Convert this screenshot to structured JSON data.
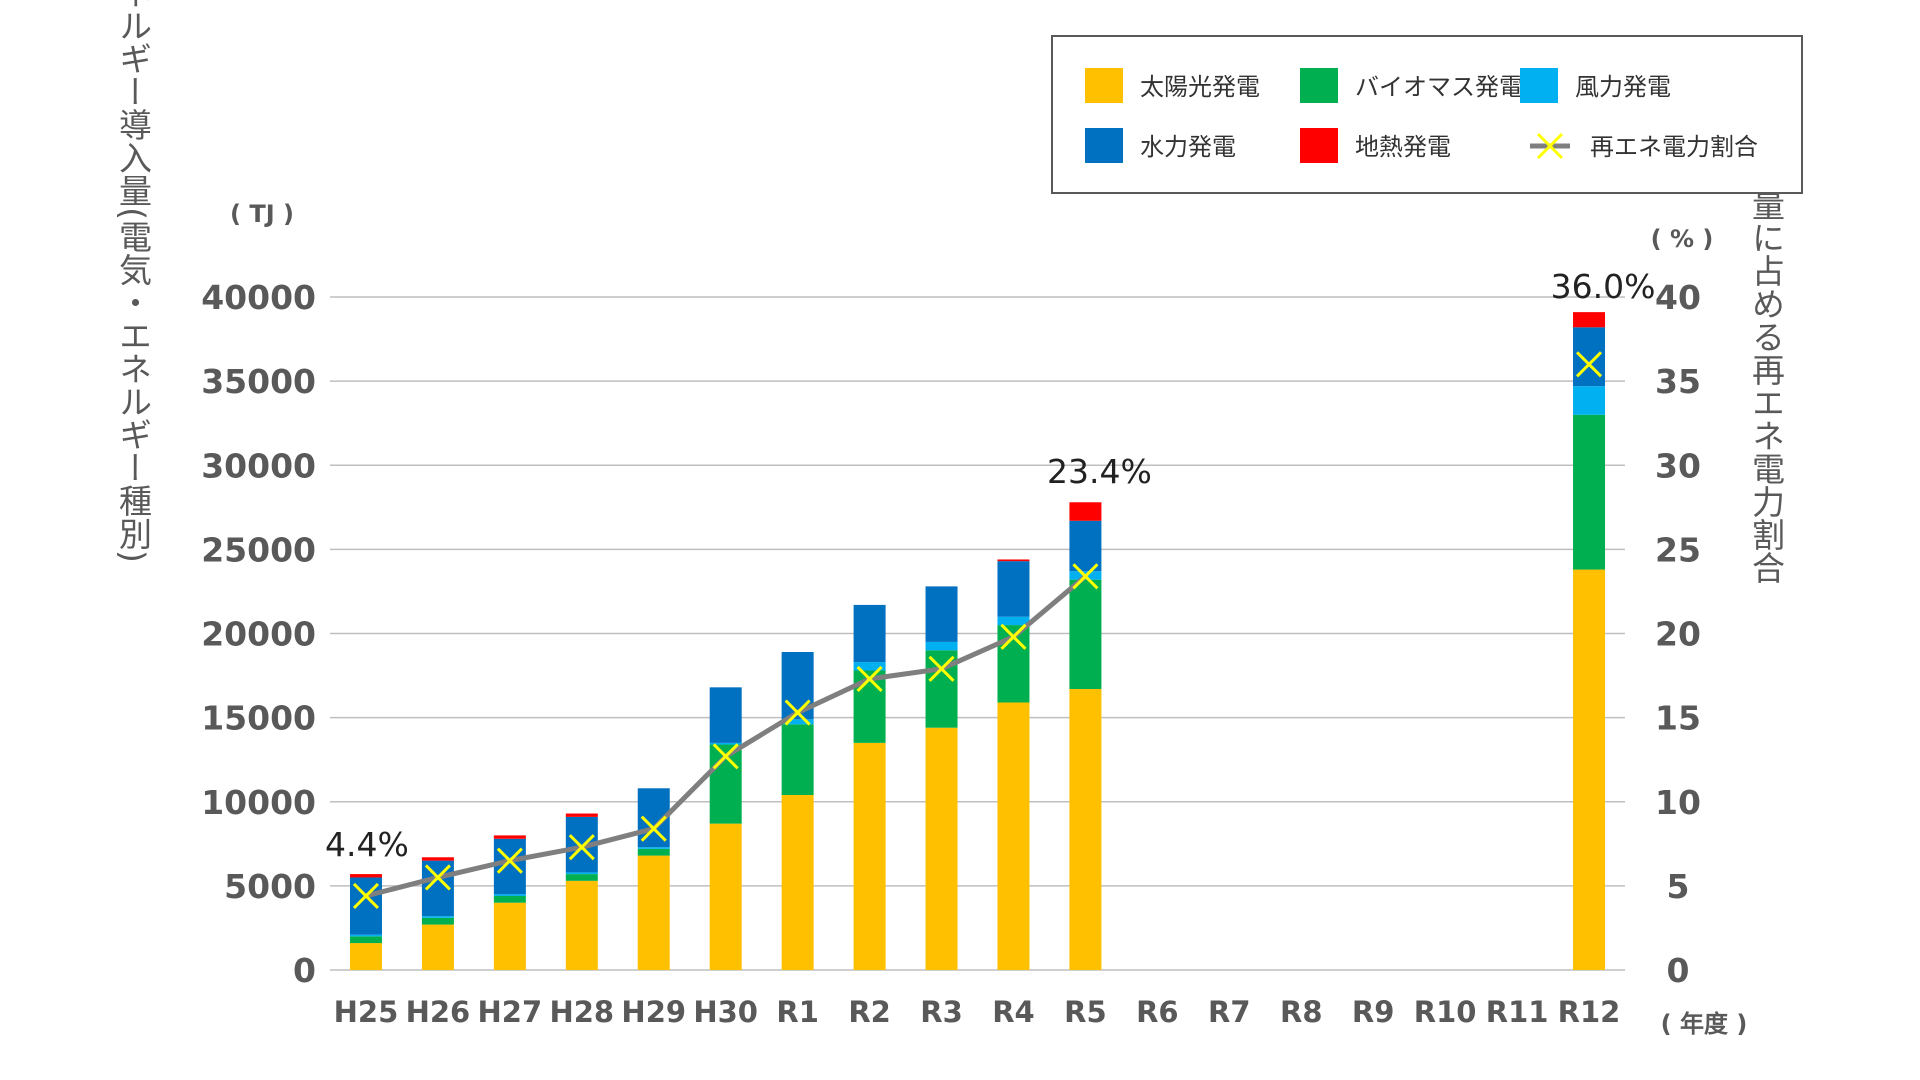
{
  "chart_data": {
    "type": "bar",
    "stacked": true,
    "x": [
      "H25",
      "H26",
      "H27",
      "H28",
      "H29",
      "H30",
      "R1",
      "R2",
      "R3",
      "R4",
      "R5",
      "R6",
      "R7",
      "R8",
      "R9",
      "R10",
      "R11",
      "R12"
    ],
    "series": [
      {
        "name": "太陽光発電",
        "color": "#FFC000",
        "values": [
          1600,
          2700,
          4000,
          5300,
          6800,
          8700,
          10400,
          13500,
          14400,
          15900,
          16700,
          null,
          null,
          null,
          null,
          null,
          null,
          23800
        ]
      },
      {
        "name": "バイオマス発電",
        "color": "#00B050",
        "values": [
          400,
          400,
          400,
          400,
          400,
          4700,
          4200,
          4300,
          4600,
          4600,
          6500,
          null,
          null,
          null,
          null,
          null,
          null,
          9200
        ]
      },
      {
        "name": "風力発電",
        "color": "#00B0F0",
        "values": [
          100,
          100,
          100,
          100,
          100,
          100,
          300,
          500,
          500,
          500,
          500,
          null,
          null,
          null,
          null,
          null,
          null,
          1700
        ]
      },
      {
        "name": "水力発電",
        "color": "#0070C0",
        "values": [
          3400,
          3300,
          3300,
          3300,
          3500,
          3300,
          4000,
          3400,
          3300,
          3300,
          3000,
          null,
          null,
          null,
          null,
          null,
          null,
          3500
        ]
      },
      {
        "name": "地熱発電",
        "color": "#FF0000",
        "values": [
          200,
          200,
          200,
          200,
          0,
          0,
          0,
          0,
          0,
          100,
          1100,
          null,
          null,
          null,
          null,
          null,
          null,
          900
        ]
      }
    ],
    "line": {
      "name": "再エネ電力割合",
      "color": "#7F7F7F",
      "marker_color": "#FFFF00",
      "values": [
        4.4,
        5.5,
        6.5,
        7.3,
        8.4,
        12.7,
        15.3,
        17.3,
        17.9,
        19.8,
        23.4,
        null,
        null,
        null,
        null,
        null,
        null,
        36.0
      ]
    },
    "data_labels": [
      {
        "x": "H25",
        "text": "4.4%"
      },
      {
        "x": "R5",
        "text": "23.4%"
      },
      {
        "x": "R12",
        "text": "36.0%"
      }
    ],
    "y_left": {
      "ticks": [
        "0",
        "5000",
        "10000",
        "15000",
        "20000",
        "25000",
        "30000",
        "35000",
        "40000"
      ],
      "ylim": [
        0,
        40000
      ],
      "unit": "( TJ )",
      "label": "再生可能エネルギー導入量(電気・エネルギー種別)"
    },
    "y_right": {
      "ticks": [
        "0",
        "5",
        "10",
        "15",
        "20",
        "25",
        "30",
        "35",
        "40"
      ],
      "ylim": [
        0,
        40
      ],
      "unit": "( % )",
      "label": "電力消費量に占める再エネ電力割合"
    },
    "x_unit": "( 年度 )",
    "grid": true,
    "legend_position": "top-right"
  }
}
